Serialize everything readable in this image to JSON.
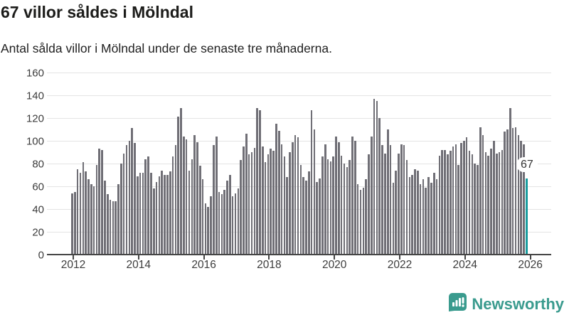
{
  "header": {
    "title": "67 villor såldes i Mölndal",
    "subtitle": "Antal sålda villor i Mölndal under de senaste tre månaderna."
  },
  "highlight": {
    "label": "67",
    "value": 67
  },
  "colors": {
    "bar": "#706f76",
    "highlight": "#189c9e",
    "grid": "#e4e4e4",
    "axis": "#454545",
    "logo": "#3a9b8e"
  },
  "y_axis": {
    "ticks": [
      0,
      20,
      40,
      60,
      80,
      100,
      120,
      140,
      160
    ],
    "max": 160
  },
  "x_axis": {
    "ticks": [
      "2012",
      "2014",
      "2016",
      "2018",
      "2020",
      "2022",
      "2024",
      "2026"
    ]
  },
  "logo": {
    "text": "Newsworthy",
    "icon": "speech-bubble-bar-chart-icon"
  },
  "chart_data": {
    "type": "bar",
    "title": "67 villor såldes i Mölndal",
    "subtitle": "Antal sålda villor i Mölndal under de senaste tre månaderna.",
    "xlabel": "",
    "ylabel": "",
    "x_start": "2012-01",
    "x_end": "2025-12",
    "frequency": "monthly",
    "ylim": [
      0,
      160
    ],
    "grid": true,
    "legend": false,
    "highlight_index": 167,
    "highlight_value": 67,
    "values": [
      54,
      55,
      75,
      72,
      81,
      73,
      66,
      62,
      60,
      79,
      93,
      92,
      65,
      53,
      48,
      47,
      47,
      62,
      80,
      89,
      96,
      100,
      111,
      98,
      69,
      72,
      72,
      84,
      86,
      72,
      58,
      64,
      69,
      74,
      70,
      70,
      73,
      86,
      96,
      121,
      129,
      104,
      101,
      74,
      84,
      105,
      99,
      78,
      66,
      45,
      42,
      51,
      96,
      104,
      55,
      53,
      57,
      65,
      70,
      51,
      54,
      58,
      83,
      95,
      106,
      88,
      90,
      94,
      129,
      127,
      95,
      81,
      88,
      93,
      91,
      115,
      109,
      97,
      86,
      68,
      90,
      99,
      105,
      103,
      79,
      68,
      65,
      73,
      127,
      110,
      64,
      67,
      86,
      97,
      84,
      82,
      86,
      104,
      99,
      87,
      80,
      77,
      83,
      104,
      100,
      62,
      57,
      59,
      66,
      88,
      104,
      137,
      135,
      120,
      96,
      89,
      110,
      96,
      63,
      74,
      89,
      97,
      96,
      83,
      68,
      70,
      75,
      74,
      62,
      66,
      59,
      68,
      63,
      72,
      66,
      87,
      92,
      92,
      88,
      91,
      95,
      97,
      79,
      98,
      100,
      103,
      91,
      88,
      80,
      79,
      112,
      105,
      90,
      87,
      93,
      100,
      89,
      90,
      92,
      108,
      110,
      129,
      111,
      112,
      105,
      100,
      97,
      67
    ]
  }
}
